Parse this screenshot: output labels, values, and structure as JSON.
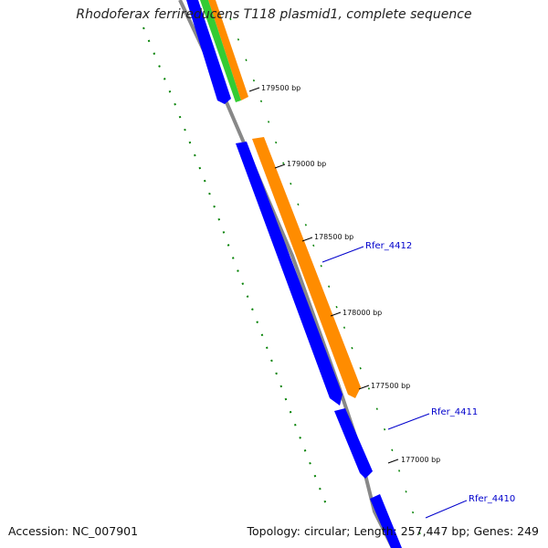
{
  "title": "Rhodoferax ferrireducens T118 plasmid1, complete sequence",
  "footer": {
    "accession": "Accession: NC_007901",
    "summary": "Topology: circular; Length: 257,447 bp; Genes: 249"
  },
  "colors": {
    "backbone": "#888888",
    "forward_cds": "#ff8c00",
    "reverse_cds": "#0000ff",
    "rna": "#33cc33",
    "gc_skew": "#008000",
    "gene_label": "#0000cc"
  },
  "scale_ticks": [
    {
      "label": "179500 bp"
    },
    {
      "label": "179000 bp"
    },
    {
      "label": "178500 bp"
    },
    {
      "label": "178000 bp"
    },
    {
      "label": "177500 bp"
    },
    {
      "label": "177000 bp"
    }
  ],
  "gene_labels": [
    {
      "label": "Rfer_4412"
    },
    {
      "label": "Rfer_4411"
    },
    {
      "label": "Rfer_4410"
    }
  ]
}
